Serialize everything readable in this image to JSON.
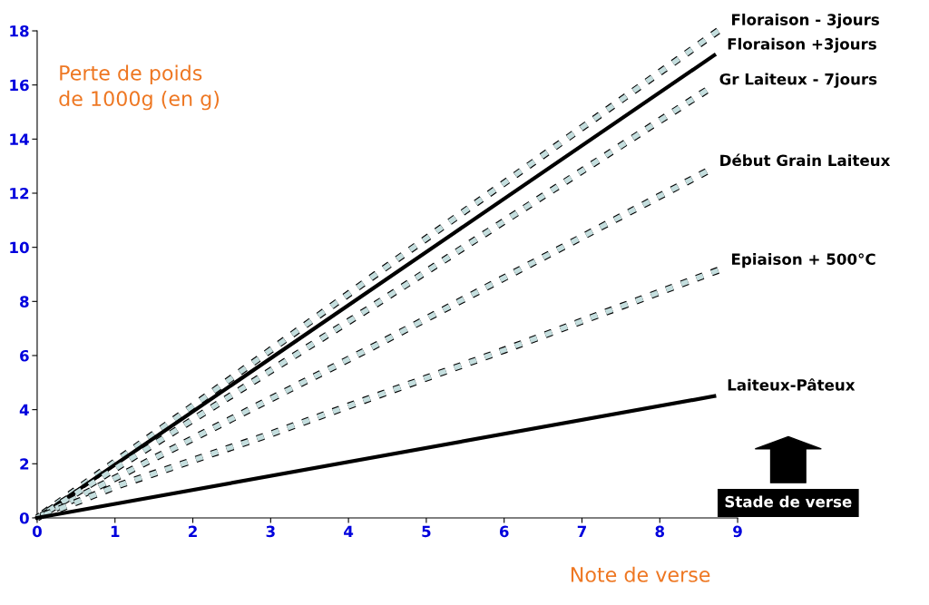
{
  "chart_data": {
    "type": "line",
    "xlabel": "Note de verse",
    "ylabel": "Perte de poids\nde 1000g (en g)",
    "xlim": [
      0,
      9
    ],
    "ylim": [
      0,
      18
    ],
    "xticks": [
      0,
      1,
      2,
      3,
      4,
      5,
      6,
      7,
      8,
      9
    ],
    "yticks": [
      0,
      2,
      4,
      6,
      8,
      10,
      12,
      14,
      16,
      18
    ],
    "grid": false,
    "legend": false,
    "marker": "none",
    "series": [
      {
        "name": "Floraison - 3jours",
        "color": "#c4dede",
        "line_style": "dashed",
        "x": [
          0,
          4.4,
          8.75
        ],
        "values": [
          0,
          9.1,
          18.0
        ]
      },
      {
        "name": "Floraison +3jours",
        "color": "#000000",
        "line_style": "solid",
        "x": [
          0,
          8.7
        ],
        "values": [
          0,
          17.1
        ]
      },
      {
        "name": "Gr Laiteux - 7jours",
        "color": "#c4dede",
        "line_style": "dashed",
        "x": [
          0,
          4.3,
          8.6
        ],
        "values": [
          0,
          7.8,
          15.8
        ]
      },
      {
        "name": "Début Grain Laiteux",
        "color": "#c4dede",
        "line_style": "dashed",
        "x": [
          0,
          4.3,
          8.6
        ],
        "values": [
          0,
          6.3,
          12.8
        ]
      },
      {
        "name": "Epiaison + 500°C",
        "color": "#c4dede",
        "line_style": "dashed",
        "x": [
          0,
          1,
          3,
          6,
          8.75
        ],
        "values": [
          0,
          1.15,
          3.1,
          6.2,
          9.15
        ]
      },
      {
        "name": "Laiteux-Pâteux",
        "color": "#000000",
        "line_style": "solid",
        "x": [
          0,
          8.7
        ],
        "values": [
          0,
          4.5
        ]
      }
    ],
    "annotations": [
      "Stade de verse"
    ]
  }
}
